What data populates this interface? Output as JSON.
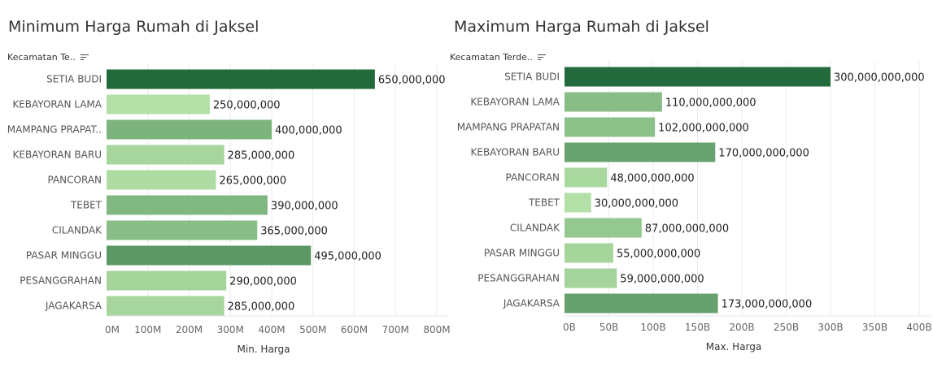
{
  "charts": [
    {
      "title": "Minimum Harga Rumah di Jaksel",
      "field_label": "Kecamatan Te..",
      "sort_icon": "sort-descending-icon"
    },
    {
      "title": "Maximum Harga Rumah di Jaksel",
      "field_label": "Kecamatan Terde..",
      "sort_icon": "sort-descending-icon"
    }
  ],
  "chart_data": [
    {
      "type": "bar",
      "orientation": "horizontal",
      "categories": [
        "SETIA BUDI",
        "KEBAYORAN LAMA",
        "MAMPANG PRAPAT..",
        "KEBAYORAN BARU",
        "PANCORAN",
        "TEBET",
        "CILANDAK",
        "PASAR MINGGU",
        "PESANGGRAHAN",
        "JAGAKARSA"
      ],
      "values": [
        650000000,
        250000000,
        400000000,
        285000000,
        265000000,
        390000000,
        365000000,
        495000000,
        290000000,
        285000000
      ],
      "value_labels": [
        "650,000,000",
        "250,000,000",
        "400,000,000",
        "285,000,000",
        "265,000,000",
        "390,000,000",
        "365,000,000",
        "495,000,000",
        "290,000,000",
        "285,000,000"
      ],
      "xlabel": "Min. Harga",
      "xlim": [
        0,
        800000000
      ],
      "ticks": [
        0,
        100000000,
        200000000,
        300000000,
        400000000,
        500000000,
        600000000,
        700000000,
        800000000
      ],
      "tick_labels": [
        "0M",
        "100M",
        "200M",
        "300M",
        "400M",
        "500M",
        "600M",
        "700M",
        "800M"
      ],
      "grid": true,
      "color_scale": [
        "#b3e0a6",
        "#236b3c"
      ]
    },
    {
      "type": "bar",
      "orientation": "horizontal",
      "categories": [
        "SETIA BUDI",
        "KEBAYORAN LAMA",
        "MAMPANG PRAPATAN",
        "KEBAYORAN BARU",
        "PANCORAN",
        "TEBET",
        "CILANDAK",
        "PASAR MINGGU",
        "PESANGGRAHAN",
        "JAGAKARSA"
      ],
      "values": [
        300000000000,
        110000000000,
        102000000000,
        170000000000,
        48000000000,
        30000000000,
        87000000000,
        55000000000,
        59000000000,
        173000000000
      ],
      "value_labels": [
        "300,000,000,000",
        "110,000,000,000",
        "102,000,000,000",
        "170,000,000,000",
        "48,000,000,000",
        "30,000,000,000",
        "87,000,000,000",
        "55,000,000,000",
        "59,000,000,000",
        "173,000,000,000"
      ],
      "xlabel": "Max. Harga",
      "xlim": [
        0,
        400000000000
      ],
      "ticks": [
        0,
        50000000000,
        100000000000,
        150000000000,
        200000000000,
        250000000000,
        300000000000,
        350000000000,
        400000000000
      ],
      "tick_labels": [
        "0B",
        "50B",
        "100B",
        "150B",
        "200B",
        "250B",
        "300B",
        "350B",
        "400B"
      ],
      "grid": true,
      "color_scale": [
        "#b3e0a6",
        "#236b3c"
      ]
    }
  ]
}
